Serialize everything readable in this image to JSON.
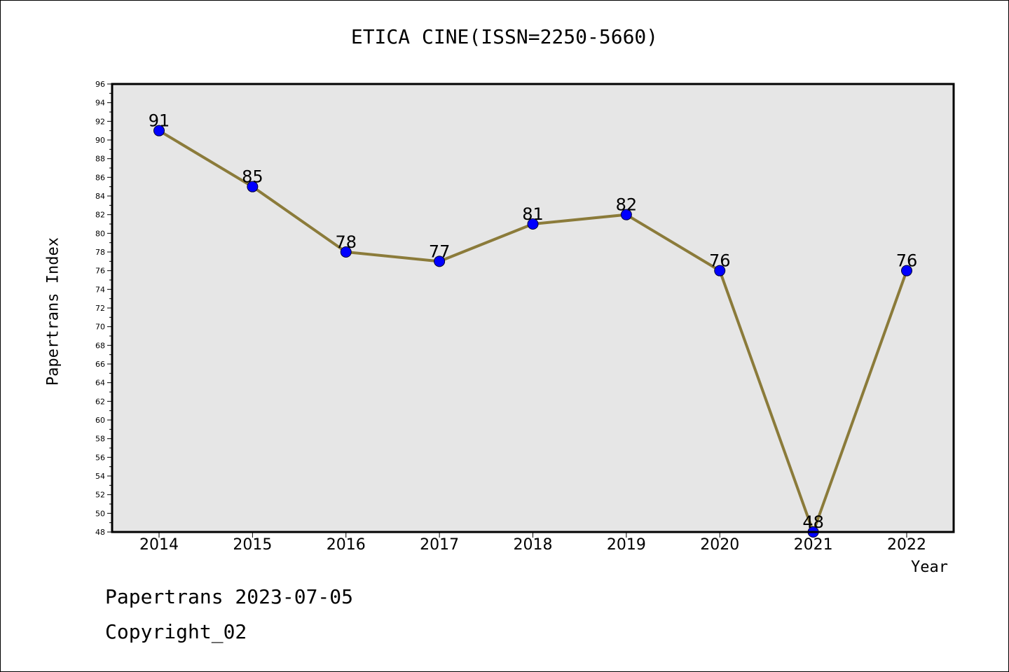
{
  "chart_data": {
    "type": "line",
    "title": "ETICA CINE(ISSN=2250-5660)",
    "xlabel": "Year",
    "ylabel": "Papertrans Index",
    "categories": [
      "2014",
      "2015",
      "2016",
      "2017",
      "2018",
      "2019",
      "2020",
      "2021",
      "2022"
    ],
    "values": [
      91,
      85,
      78,
      77,
      81,
      82,
      76,
      48,
      76
    ],
    "ylim": [
      48,
      96
    ],
    "yticks": [
      48,
      50,
      52,
      54,
      56,
      58,
      60,
      62,
      64,
      66,
      68,
      70,
      72,
      74,
      76,
      78,
      80,
      82,
      84,
      86,
      88,
      90,
      92,
      94,
      96
    ],
    "grid": false,
    "colors": {
      "line": "#8B7B3A",
      "marker": "#0000FF",
      "plot_background": "#E6E6E6"
    }
  },
  "footer": {
    "line1": "Papertrans 2023-07-05",
    "line2": "Copyright_02"
  }
}
